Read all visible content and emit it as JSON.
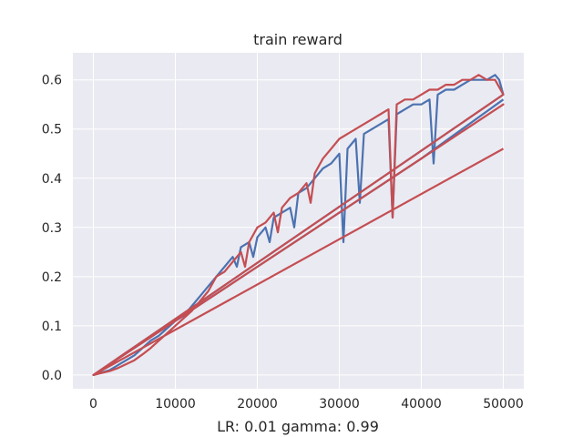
{
  "chart_data": {
    "type": "line",
    "title": "train reward",
    "xlabel": "LR: 0.01 gamma: 0.99",
    "ylabel": "",
    "xlim": [
      -2500,
      52500
    ],
    "ylim": [
      -0.028,
      0.655
    ],
    "xticks": [
      0,
      10000,
      20000,
      30000,
      40000,
      50000
    ],
    "xtick_labels": [
      "0",
      "10000",
      "20000",
      "30000",
      "40000",
      "50000"
    ],
    "yticks": [
      0.0,
      0.1,
      0.2,
      0.3,
      0.4,
      0.5,
      0.6
    ],
    "ytick_labels": [
      "0.0",
      "0.1",
      "0.2",
      "0.3",
      "0.4",
      "0.5",
      "0.6"
    ],
    "grid": true,
    "legend": "none",
    "colors": {
      "background": "#eaeaf2",
      "grid": "#ffffff",
      "blue": "#4c72b0",
      "red": "#c44e52"
    },
    "series": [
      {
        "color": "#4c72b0",
        "x": [
          0,
          1000,
          2000,
          3000,
          4000,
          5000,
          6000,
          7000,
          8000,
          9000,
          10000,
          11000,
          12000,
          13000,
          14000,
          15000,
          16000,
          17000,
          17500,
          18000,
          19000,
          19500,
          20000,
          21000,
          21500,
          22000,
          23000,
          24000,
          24500,
          25000,
          26000,
          27000,
          28000,
          29000,
          30000,
          30500,
          31000,
          32000,
          32500,
          33000,
          34000,
          35000,
          36000,
          36500,
          37000,
          38000,
          39000,
          40000,
          41000,
          41500,
          42000,
          43000,
          44000,
          45000,
          46000,
          47000,
          48000,
          49000,
          49500,
          50000,
          0,
          5000,
          10000,
          15000,
          20000,
          25000,
          30000,
          35000,
          40000,
          45000,
          50000
        ],
        "y": [
          0.0,
          0.005,
          0.01,
          0.02,
          0.03,
          0.04,
          0.055,
          0.07,
          0.08,
          0.095,
          0.11,
          0.12,
          0.14,
          0.16,
          0.18,
          0.2,
          0.22,
          0.24,
          0.22,
          0.26,
          0.27,
          0.24,
          0.28,
          0.3,
          0.27,
          0.32,
          0.33,
          0.34,
          0.3,
          0.37,
          0.38,
          0.4,
          0.42,
          0.43,
          0.45,
          0.27,
          0.46,
          0.48,
          0.35,
          0.49,
          0.5,
          0.51,
          0.52,
          0.32,
          0.53,
          0.54,
          0.55,
          0.55,
          0.56,
          0.43,
          0.57,
          0.58,
          0.58,
          0.59,
          0.6,
          0.6,
          0.6,
          0.61,
          0.6,
          0.57,
          0.0,
          0.055,
          0.11,
          0.165,
          0.22,
          0.275,
          0.33,
          0.385,
          0.44,
          0.5,
          0.56
        ]
      },
      {
        "color": "#c44e52",
        "x": [
          0,
          1000,
          2000,
          3000,
          4000,
          5000,
          6000,
          7000,
          8000,
          9000,
          10000,
          11000,
          12000,
          13000,
          14000,
          15000,
          16000,
          17000,
          18000,
          18500,
          19000,
          20000,
          21000,
          22000,
          22500,
          23000,
          24000,
          25000,
          26000,
          26500,
          27000,
          28000,
          29000,
          30000,
          31000,
          32000,
          33000,
          34000,
          35000,
          36000,
          36500,
          37000,
          38000,
          39000,
          40000,
          41000,
          42000,
          43000,
          44000,
          45000,
          46000,
          47000,
          48000,
          49000,
          50000,
          0,
          10000,
          20000,
          30000,
          40000,
          50000,
          0,
          50000
        ],
        "y": [
          0.0,
          0.004,
          0.008,
          0.014,
          0.022,
          0.03,
          0.042,
          0.055,
          0.07,
          0.085,
          0.1,
          0.115,
          0.13,
          0.15,
          0.17,
          0.2,
          0.21,
          0.23,
          0.25,
          0.22,
          0.27,
          0.3,
          0.31,
          0.33,
          0.29,
          0.34,
          0.36,
          0.37,
          0.39,
          0.35,
          0.41,
          0.44,
          0.46,
          0.48,
          0.49,
          0.5,
          0.51,
          0.52,
          0.53,
          0.54,
          0.32,
          0.55,
          0.56,
          0.56,
          0.57,
          0.58,
          0.58,
          0.59,
          0.59,
          0.6,
          0.6,
          0.61,
          0.6,
          0.6,
          0.57,
          0.0,
          0.11,
          0.22,
          0.33,
          0.44,
          0.55,
          0.0,
          0.46
        ]
      }
    ]
  }
}
